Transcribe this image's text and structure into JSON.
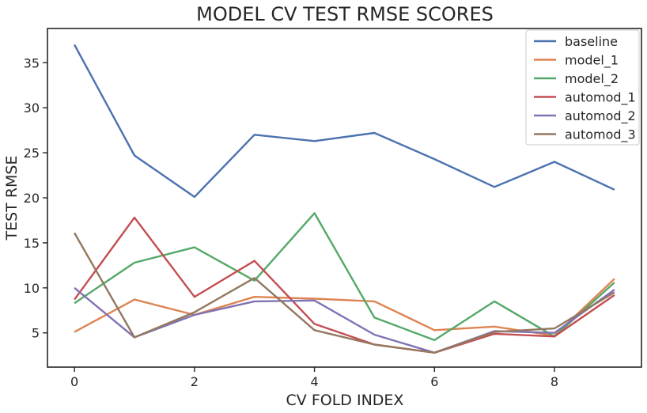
{
  "chart_data": {
    "type": "line",
    "title": "MODEL CV TEST RMSE SCORES",
    "xlabel": "CV FOLD INDEX",
    "ylabel": "TEST RMSE",
    "x": [
      0,
      1,
      2,
      3,
      4,
      5,
      6,
      7,
      8,
      9
    ],
    "xlim": [
      -0.45,
      9.45
    ],
    "ylim": [
      1.2,
      38.8
    ],
    "xticks": [
      0,
      2,
      4,
      6,
      8
    ],
    "yticks": [
      5,
      10,
      15,
      20,
      25,
      30,
      35
    ],
    "grid": false,
    "legend_position": "top-right",
    "series": [
      {
        "name": "baseline",
        "color": "#4c72b0",
        "values": [
          37.0,
          24.7,
          20.1,
          27.0,
          26.3,
          27.2,
          24.3,
          21.2,
          24.0,
          20.9
        ]
      },
      {
        "name": "model_1",
        "color": "#dd8452",
        "values": [
          5.1,
          8.7,
          7.0,
          9.0,
          8.8,
          8.5,
          5.3,
          5.7,
          4.7,
          11.0
        ]
      },
      {
        "name": "model_2",
        "color": "#55a868",
        "values": [
          8.3,
          12.8,
          14.5,
          10.8,
          18.3,
          6.7,
          4.2,
          8.5,
          4.6,
          10.6
        ]
      },
      {
        "name": "automod_1",
        "color": "#c44e52",
        "values": [
          8.7,
          17.8,
          9.0,
          13.0,
          6.0,
          3.7,
          2.8,
          4.9,
          4.6,
          9.2
        ]
      },
      {
        "name": "automod_2",
        "color": "#8172b3",
        "values": [
          10.0,
          4.5,
          7.0,
          8.5,
          8.6,
          4.8,
          2.8,
          5.2,
          5.0,
          9.8
        ]
      },
      {
        "name": "automod_3",
        "color": "#937860",
        "values": [
          16.1,
          4.5,
          7.3,
          11.1,
          5.3,
          3.7,
          2.8,
          5.1,
          5.5,
          9.5
        ]
      }
    ]
  }
}
